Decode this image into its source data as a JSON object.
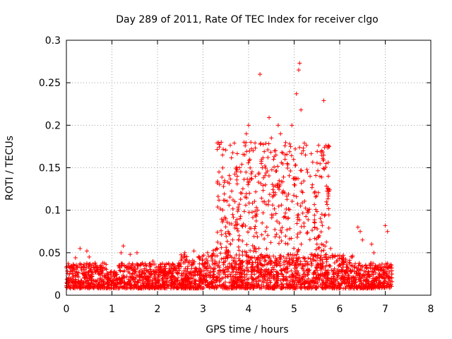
{
  "chart_data": {
    "type": "scatter",
    "title": "Day 289 of 2011, Rate Of TEC Index for receiver clgo",
    "xlabel": "GPS time / hours",
    "ylabel": "ROTI / TECUs",
    "xlim": [
      0,
      8
    ],
    "ylim": [
      0,
      0.3
    ],
    "xticks": [
      "0",
      "1",
      "2",
      "3",
      "4",
      "5",
      "6",
      "7",
      "8"
    ],
    "yticks": [
      "0",
      "0.05",
      "0.1",
      "0.15",
      "0.2",
      "0.25",
      "0.3"
    ],
    "grid": true,
    "marker": "+",
    "series": [
      {
        "name": "ROTI",
        "color": "#ff0000",
        "points": [
          [
            0.05,
            0.035
          ],
          [
            0.1,
            0.028
          ],
          [
            0.2,
            0.044
          ],
          [
            0.3,
            0.055
          ],
          [
            0.45,
            0.052
          ],
          [
            0.5,
            0.045
          ],
          [
            0.7,
            0.03
          ],
          [
            0.8,
            0.038
          ],
          [
            1.0,
            0.016
          ],
          [
            1.2,
            0.05
          ],
          [
            1.25,
            0.058
          ],
          [
            1.4,
            0.048
          ],
          [
            1.55,
            0.05
          ],
          [
            1.9,
            0.04
          ],
          [
            2.6,
            0.05
          ],
          [
            2.8,
            0.052
          ],
          [
            3.1,
            0.05
          ],
          [
            3.3,
            0.055
          ],
          [
            3.35,
            0.145
          ],
          [
            3.4,
            0.18
          ],
          [
            3.45,
            0.128
          ],
          [
            3.5,
            0.09
          ],
          [
            3.55,
            0.075
          ],
          [
            3.6,
            0.06
          ],
          [
            3.65,
            0.065
          ],
          [
            3.7,
            0.11
          ],
          [
            3.75,
            0.14
          ],
          [
            3.8,
            0.15
          ],
          [
            3.85,
            0.12
          ],
          [
            3.9,
            0.18
          ],
          [
            3.95,
            0.19
          ],
          [
            4.0,
            0.2
          ],
          [
            4.02,
            0.12
          ],
          [
            4.05,
            0.18
          ],
          [
            4.1,
            0.17
          ],
          [
            4.15,
            0.14
          ],
          [
            4.2,
            0.1
          ],
          [
            4.25,
            0.26
          ],
          [
            4.28,
            0.155
          ],
          [
            4.3,
            0.15
          ],
          [
            4.35,
            0.11
          ],
          [
            4.4,
            0.08
          ],
          [
            4.45,
            0.209
          ],
          [
            4.5,
            0.185
          ],
          [
            4.55,
            0.16
          ],
          [
            4.6,
            0.165
          ],
          [
            4.65,
            0.2
          ],
          [
            4.7,
            0.19
          ],
          [
            4.75,
            0.12
          ],
          [
            4.8,
            0.16
          ],
          [
            4.85,
            0.155
          ],
          [
            4.9,
            0.178
          ],
          [
            4.95,
            0.2
          ],
          [
            5.0,
            0.13
          ],
          [
            5.05,
            0.237
          ],
          [
            5.1,
            0.265
          ],
          [
            5.12,
            0.273
          ],
          [
            5.15,
            0.218
          ],
          [
            5.2,
            0.17
          ],
          [
            5.25,
            0.165
          ],
          [
            5.3,
            0.1
          ],
          [
            5.35,
            0.14
          ],
          [
            5.4,
            0.13
          ],
          [
            5.45,
            0.08
          ],
          [
            5.5,
            0.06
          ],
          [
            5.55,
            0.07
          ],
          [
            5.6,
            0.06
          ],
          [
            5.65,
            0.229
          ],
          [
            5.7,
            0.155
          ],
          [
            5.75,
            0.14
          ],
          [
            5.8,
            0.055
          ],
          [
            6.4,
            0.08
          ],
          [
            6.45,
            0.075
          ],
          [
            6.5,
            0.065
          ],
          [
            6.7,
            0.06
          ],
          [
            6.75,
            0.05
          ],
          [
            7.0,
            0.082
          ],
          [
            7.05,
            0.075
          ]
        ]
      }
    ]
  }
}
